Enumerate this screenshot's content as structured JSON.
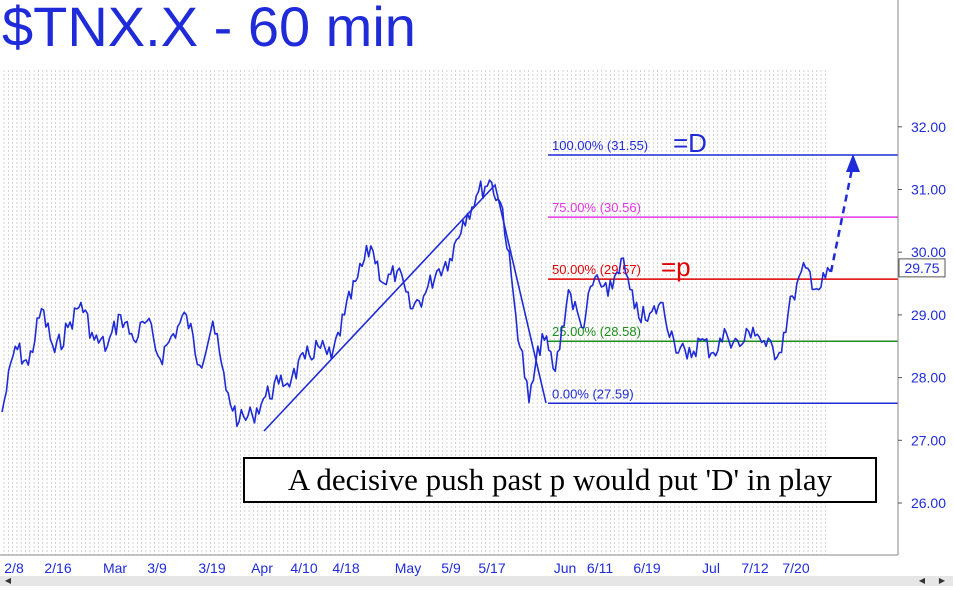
{
  "chart_data": {
    "type": "line",
    "title": "$TNX.X - 60 min",
    "xlabel": "",
    "ylabel": "",
    "ylim": [
      25.3,
      33.1
    ],
    "y_ticks": [
      "26.00",
      "27.00",
      "28.00",
      "29.00",
      "30.00",
      "31.00",
      "32.00"
    ],
    "x_tick_labels": [
      "2/8",
      "2/16",
      "Mar",
      "3/9",
      "3/19",
      "Apr",
      "4/10",
      "4/18",
      "May",
      "5/9",
      "5/17",
      "Jun",
      "6/11",
      "6/19",
      "Jul",
      "7/12",
      "7/20"
    ],
    "last_price": "29.75",
    "grid": true,
    "series": [
      {
        "values": [
          27.45,
          28.5,
          28.2,
          29.1,
          28.4,
          28.8,
          29.2,
          28.6,
          28.5,
          29.0,
          28.6,
          28.9,
          28.3,
          28.7,
          29.0,
          28.2,
          28.9,
          27.8,
          27.3,
          27.4,
          27.7,
          27.9,
          28.0,
          28.3,
          28.5,
          28.3,
          29.0,
          29.6,
          30.1,
          29.5,
          29.7,
          29.1,
          29.3,
          29.7,
          29.9,
          30.5,
          30.9,
          31.15,
          30.7,
          29.0,
          27.6,
          28.7,
          28.1,
          29.4,
          28.8,
          29.6,
          29.3,
          29.9,
          29.1,
          28.9,
          29.2,
          28.6,
          28.3,
          28.6,
          28.4,
          28.7,
          28.5,
          28.8,
          28.5,
          28.4,
          29.3,
          29.75,
          29.4,
          29.75
        ]
      }
    ],
    "fibonacci_levels": [
      {
        "label": "100.00% (31.55)",
        "value": 31.55,
        "color": "#1f2bd8",
        "marker": "=D"
      },
      {
        "label": "75.00% (30.56)",
        "value": 30.56,
        "color": "#e436e6",
        "marker": ""
      },
      {
        "label": "50.00% (29.57)",
        "value": 29.57,
        "color": "#e00000",
        "marker": "=p"
      },
      {
        "label": "25.00% (28.58)",
        "value": 28.58,
        "color": "#1a8f1a",
        "marker": ""
      },
      {
        "label": "0.00% (27.59)",
        "value": 27.59,
        "color": "#1f2bd8",
        "marker": ""
      }
    ],
    "annotation": "A decisive push past p would put 'D' in play",
    "colors": {
      "price": "#1f2bd8",
      "grid": "#c8c8c8",
      "axis": "#1f2bd8",
      "box_text": "#000000"
    }
  }
}
